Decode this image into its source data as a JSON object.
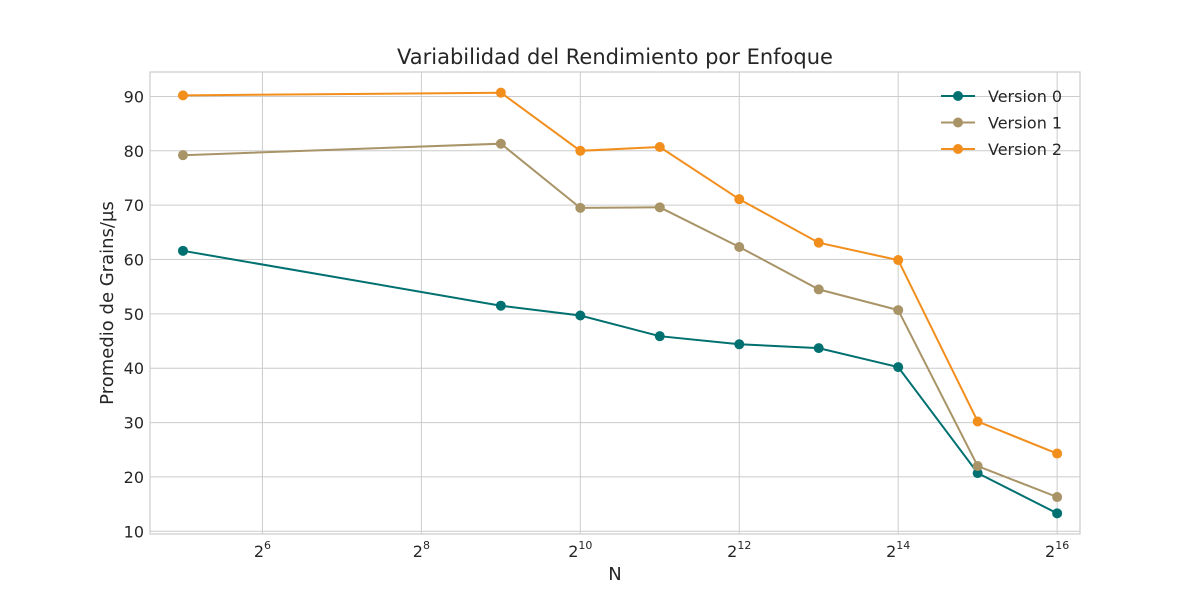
{
  "chart_data": {
    "type": "line",
    "title": "Variabilidad del Rendimiento por Enfoque",
    "xlabel": "N",
    "ylabel": "Promedio de Grains/µs",
    "x_scale": "log2",
    "x": [
      32,
      512,
      1024,
      2048,
      4096,
      8192,
      16384,
      32768,
      65536
    ],
    "xlim": [
      24,
      80000
    ],
    "ylim": [
      9.5,
      94.5
    ],
    "x_ticks": [
      {
        "value": 64,
        "base": "2",
        "exp": "6"
      },
      {
        "value": 256,
        "base": "2",
        "exp": "8"
      },
      {
        "value": 1024,
        "base": "2",
        "exp": "10"
      },
      {
        "value": 4096,
        "base": "2",
        "exp": "12"
      },
      {
        "value": 16384,
        "base": "2",
        "exp": "14"
      },
      {
        "value": 65536,
        "base": "2",
        "exp": "16"
      }
    ],
    "y_ticks": [
      10,
      20,
      30,
      40,
      50,
      60,
      70,
      80,
      90
    ],
    "grid": true,
    "legend_position": "top-right",
    "series": [
      {
        "name": "Version 0",
        "color": "#007070",
        "values": [
          61.6,
          51.5,
          49.7,
          45.9,
          44.4,
          43.7,
          40.2,
          20.7,
          13.3
        ]
      },
      {
        "name": "Version 1",
        "color": "#a89467",
        "values": [
          79.2,
          81.3,
          69.5,
          69.6,
          62.3,
          54.5,
          50.7,
          22.0,
          16.3
        ]
      },
      {
        "name": "Version 2",
        "color": "#f28e1c",
        "values": [
          90.2,
          90.7,
          80.0,
          80.7,
          71.1,
          63.1,
          59.9,
          30.2,
          24.3
        ]
      }
    ]
  }
}
